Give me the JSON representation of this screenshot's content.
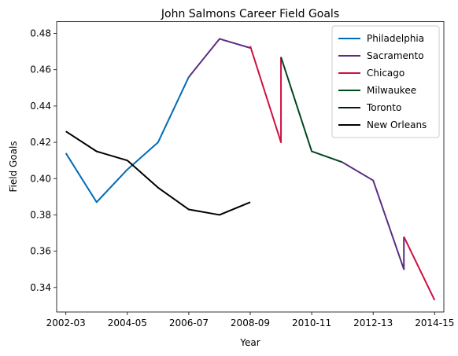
{
  "chart_data": {
    "type": "line",
    "title": "John Salmons Career Field Goals",
    "xlabel": "Year",
    "ylabel": "Field Goals",
    "x_ticks": [
      "2002-03",
      "2004-05",
      "2006-07",
      "2008-09",
      "2010-11",
      "2012-13",
      "2014-15"
    ],
    "y_ticks": [
      "0.34",
      "0.36",
      "0.38",
      "0.40",
      "0.42",
      "0.44",
      "0.46",
      "0.48"
    ],
    "xlim": [
      2001.7,
      2014.3
    ],
    "ylim": [
      0.3265,
      0.4865
    ],
    "grid": false,
    "legend_position": "top-right",
    "series": [
      {
        "name": "Philadelphia",
        "color": "#006BB6",
        "points": [
          [
            2002,
            0.414
          ],
          [
            2003,
            0.387
          ],
          [
            2004,
            0.405
          ],
          [
            2005,
            0.42
          ],
          [
            2006,
            0.456
          ]
        ]
      },
      {
        "name": "Sacramento",
        "color": "#5A2D81",
        "points": [
          [
            2006,
            0.456
          ],
          [
            2007,
            0.477
          ],
          [
            2008,
            0.472
          ]
        ]
      },
      {
        "name": "Chicago",
        "color": "#CE1141",
        "points": [
          [
            2008,
            0.473
          ],
          [
            2009,
            0.42
          ],
          [
            2009,
            0.467
          ]
        ]
      },
      {
        "name": "Milwaukee",
        "color": "#00471B",
        "points": [
          [
            2009,
            0.467
          ],
          [
            2010,
            0.415
          ],
          [
            2011,
            0.409
          ]
        ]
      },
      {
        "name": "Sacramento",
        "color": "#5A2D81",
        "points": [
          [
            2011,
            0.409
          ],
          [
            2012,
            0.399
          ],
          [
            2013,
            0.35
          ],
          [
            2013,
            0.368
          ]
        ]
      },
      {
        "name": "Toronto",
        "color": "#061922",
        "points": []
      },
      {
        "name": "Chicago",
        "color": "#CE1141",
        "points": [
          [
            2013,
            0.368
          ],
          [
            2014,
            0.333
          ]
        ]
      },
      {
        "name": "New Orleans",
        "color": "#000000",
        "points": [
          [
            2002,
            0.426
          ],
          [
            2003,
            0.415
          ],
          [
            2004,
            0.41
          ],
          [
            2005,
            0.395
          ],
          [
            2006,
            0.383
          ],
          [
            2007,
            0.38
          ],
          [
            2008,
            0.387
          ]
        ]
      }
    ],
    "legend": [
      {
        "label": "Philadelphia",
        "color": "#006BB6"
      },
      {
        "label": "Sacramento",
        "color": "#5A2D81"
      },
      {
        "label": "Chicago",
        "color": "#CE1141"
      },
      {
        "label": "Milwaukee",
        "color": "#00471B"
      },
      {
        "label": "Toronto",
        "color": "#061922"
      },
      {
        "label": "New Orleans",
        "color": "#000000"
      }
    ]
  }
}
